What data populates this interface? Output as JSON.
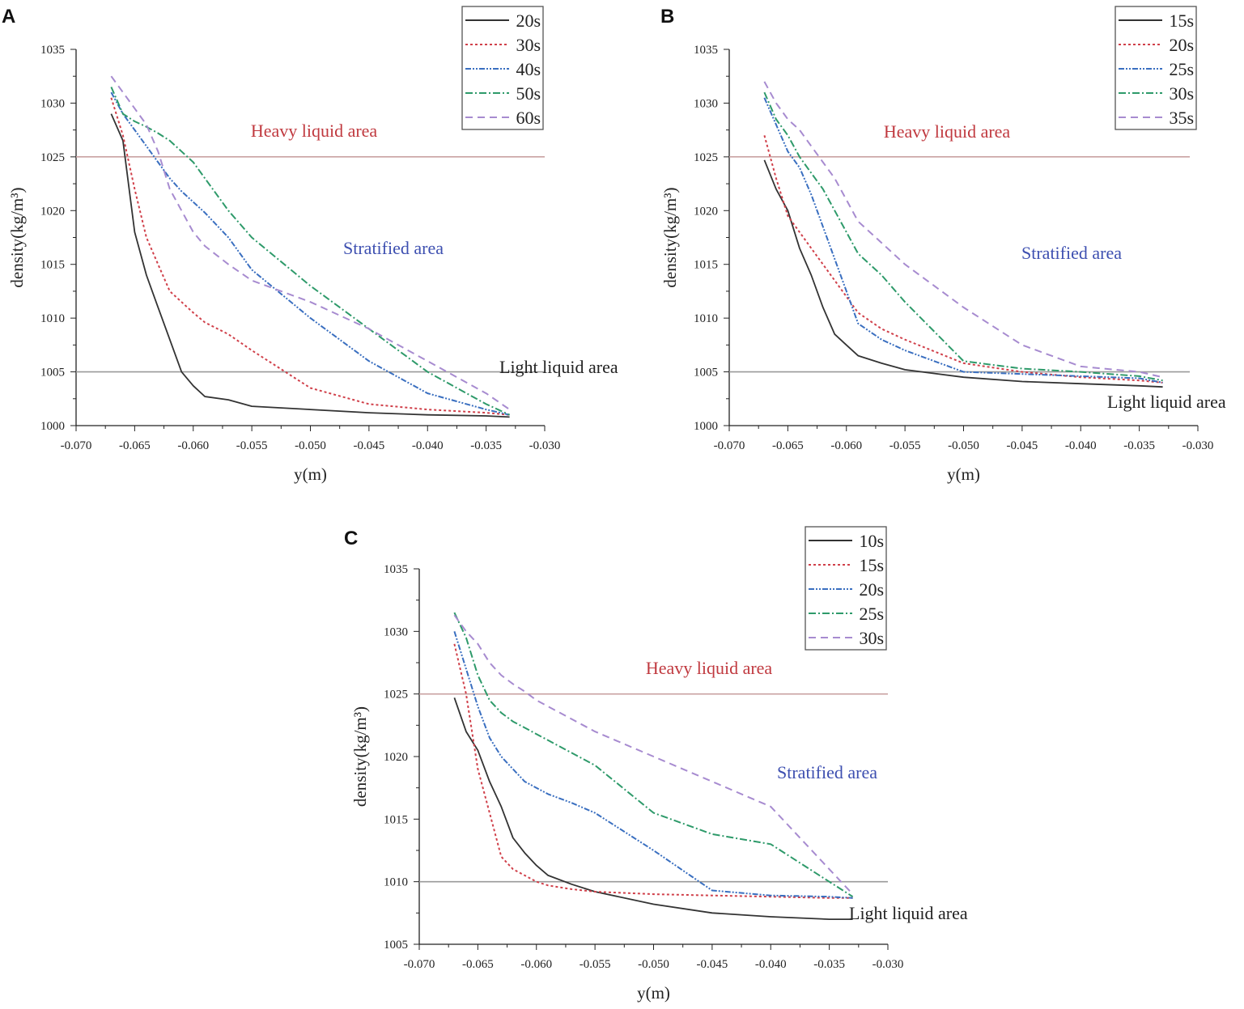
{
  "chart_data": [
    {
      "panel": "A",
      "type": "line",
      "xlabel": "y(m)",
      "ylabel": "density(kg/m³)",
      "xlim": [
        -0.07,
        -0.03
      ],
      "ylim": [
        1000,
        1035
      ],
      "x_ticks": [
        "-0.070",
        "-0.065",
        "-0.060",
        "-0.055",
        "-0.050",
        "-0.045",
        "-0.040",
        "-0.035",
        "-0.030"
      ],
      "y_ticks": [
        "1000",
        "1005",
        "1010",
        "1015",
        "1020",
        "1025",
        "1030",
        "1035"
      ],
      "legend_position": "top-right",
      "reference_lines": [
        1025,
        1005
      ],
      "annotations": {
        "heavy": "Heavy liquid area",
        "stratified": "Stratified area",
        "light": "Light liquid area"
      },
      "x": [
        -0.067,
        -0.066,
        -0.065,
        -0.064,
        -0.063,
        -0.062,
        -0.061,
        -0.06,
        -0.059,
        -0.057,
        -0.055,
        -0.05,
        -0.045,
        -0.04,
        -0.035,
        -0.033
      ],
      "series": [
        {
          "name": "20s",
          "color": "#333333",
          "values": [
            1029,
            1026.5,
            1018,
            1014,
            1011,
            1008,
            1005,
            1003.7,
            1002.7,
            1002.4,
            1001.8,
            1001.5,
            1001.2,
            1001,
            1000.9,
            1000.8
          ]
        },
        {
          "name": "30s",
          "color": "#d0404a",
          "values": [
            1030.5,
            1027,
            1022,
            1017.5,
            1015,
            1012.5,
            1011.5,
            1010.5,
            1009.6,
            1008.5,
            1007,
            1003.5,
            1002,
            1001.5,
            1001.2,
            1001
          ]
        },
        {
          "name": "40s",
          "color": "#3a6fc0",
          "values": [
            1031,
            1029,
            1027.5,
            1026,
            1024.5,
            1023,
            1021.8,
            1020.8,
            1019.8,
            1017.5,
            1014.5,
            1010,
            1006,
            1003,
            1001.5,
            1001
          ]
        },
        {
          "name": "50s",
          "color": "#2e9a6a",
          "values": [
            1031.5,
            1029,
            1028.3,
            1027.8,
            1027.2,
            1026.5,
            1025.5,
            1024.5,
            1023,
            1020,
            1017.5,
            1013,
            1009,
            1005,
            1002,
            1001
          ]
        },
        {
          "name": "60s",
          "color": "#a78bd0",
          "values": [
            1032.5,
            1031,
            1029.5,
            1028,
            1025.5,
            1022,
            1020,
            1018,
            1016.7,
            1015,
            1013.5,
            1011.5,
            1009,
            1006,
            1003,
            1001.5
          ]
        }
      ]
    },
    {
      "panel": "B",
      "type": "line",
      "xlabel": "y(m)",
      "ylabel": "density(kg/m³)",
      "xlim": [
        -0.07,
        -0.03
      ],
      "ylim": [
        1000,
        1035
      ],
      "x_ticks": [
        "-0.070",
        "-0.065",
        "-0.060",
        "-0.055",
        "-0.050",
        "-0.045",
        "-0.040",
        "-0.035",
        "-0.030"
      ],
      "y_ticks": [
        "1000",
        "1005",
        "1010",
        "1015",
        "1020",
        "1025",
        "1030",
        "1035"
      ],
      "legend_position": "top-right",
      "reference_lines": [
        1025,
        1005
      ],
      "annotations": {
        "heavy": "Heavy liquid area",
        "stratified": "Stratified area",
        "light": "Light liquid area"
      },
      "x": [
        -0.067,
        -0.066,
        -0.065,
        -0.064,
        -0.063,
        -0.062,
        -0.061,
        -0.06,
        -0.059,
        -0.057,
        -0.055,
        -0.05,
        -0.045,
        -0.04,
        -0.035,
        -0.033
      ],
      "series": [
        {
          "name": "15s",
          "color": "#333333",
          "values": [
            1024.7,
            1022,
            1020,
            1016.5,
            1014,
            1011,
            1008.5,
            1007.5,
            1006.5,
            1005.8,
            1005.2,
            1004.5,
            1004.1,
            1003.9,
            1003.7,
            1003.6
          ]
        },
        {
          "name": "20s",
          "color": "#d0404a",
          "values": [
            1027,
            1023,
            1019.5,
            1018,
            1016.5,
            1015,
            1013.5,
            1012,
            1010.5,
            1009,
            1008,
            1005.8,
            1005,
            1004.5,
            1004.2,
            1004
          ]
        },
        {
          "name": "25s",
          "color": "#3a6fc0",
          "values": [
            1030.5,
            1028,
            1025.5,
            1024,
            1021.5,
            1018.5,
            1015.5,
            1012.5,
            1009.5,
            1008,
            1007,
            1005,
            1004.8,
            1004.6,
            1004.4,
            1004
          ]
        },
        {
          "name": "30s",
          "color": "#2e9a6a",
          "values": [
            1031,
            1028.5,
            1027,
            1025,
            1023.5,
            1022,
            1020,
            1018,
            1016,
            1014,
            1011.5,
            1006,
            1005.3,
            1005,
            1004.6,
            1004.2
          ]
        },
        {
          "name": "35s",
          "color": "#a78bd0",
          "values": [
            1032,
            1030,
            1028.5,
            1027.5,
            1026,
            1024.5,
            1023,
            1021,
            1019,
            1017,
            1015,
            1011,
            1007.5,
            1005.5,
            1005,
            1004.5
          ]
        }
      ]
    },
    {
      "panel": "C",
      "type": "line",
      "xlabel": "y(m)",
      "ylabel": "density(kg/m³)",
      "xlim": [
        -0.07,
        -0.03
      ],
      "ylim": [
        1005,
        1035
      ],
      "x_ticks": [
        "-0.070",
        "-0.065",
        "-0.060",
        "-0.055",
        "-0.050",
        "-0.045",
        "-0.040",
        "-0.035",
        "-0.030"
      ],
      "y_ticks": [
        "1005",
        "1010",
        "1015",
        "1020",
        "1025",
        "1030",
        "1035"
      ],
      "legend_position": "top-right",
      "reference_lines": [
        1025,
        1010
      ],
      "annotations": {
        "heavy": "Heavy liquid area",
        "stratified": "Stratified area",
        "light": "Light liquid area"
      },
      "x": [
        -0.067,
        -0.066,
        -0.065,
        -0.064,
        -0.063,
        -0.062,
        -0.061,
        -0.06,
        -0.059,
        -0.057,
        -0.055,
        -0.05,
        -0.045,
        -0.04,
        -0.035,
        -0.033
      ],
      "series": [
        {
          "name": "10s",
          "color": "#333333",
          "values": [
            1024.7,
            1022,
            1020.5,
            1018,
            1016,
            1013.5,
            1012.3,
            1011.3,
            1010.5,
            1009.8,
            1009.2,
            1008.2,
            1007.5,
            1007.2,
            1007,
            1007
          ]
        },
        {
          "name": "15s",
          "color": "#d0404a",
          "values": [
            1029,
            1025,
            1019,
            1015.5,
            1012,
            1011,
            1010.5,
            1010,
            1009.7,
            1009.4,
            1009.2,
            1009,
            1008.9,
            1008.8,
            1008.7,
            1008.7
          ]
        },
        {
          "name": "20s",
          "color": "#3a6fc0",
          "values": [
            1030,
            1027,
            1024,
            1021.5,
            1020,
            1019,
            1018,
            1017.5,
            1017,
            1016.3,
            1015.5,
            1012.5,
            1009.3,
            1008.9,
            1008.8,
            1008.7
          ]
        },
        {
          "name": "25s",
          "color": "#2e9a6a",
          "values": [
            1031.5,
            1029.5,
            1026.5,
            1024.5,
            1023.5,
            1022.8,
            1022.3,
            1021.8,
            1021.3,
            1020.3,
            1019.3,
            1015.5,
            1013.8,
            1013,
            1010,
            1008.8
          ]
        },
        {
          "name": "30s",
          "color": "#a78bd0",
          "values": [
            1031.3,
            1030,
            1029,
            1027.5,
            1026.5,
            1025.8,
            1025.2,
            1024.5,
            1024,
            1023,
            1022,
            1020,
            1018,
            1016,
            1011,
            1009
          ]
        }
      ]
    }
  ],
  "annotation_colors": {
    "heavy": "#c0393f",
    "stratified": "#3d4fb0",
    "light": "#222222"
  },
  "reference_line_colors": [
    "#c9a2a2",
    "#9a9a9a"
  ]
}
